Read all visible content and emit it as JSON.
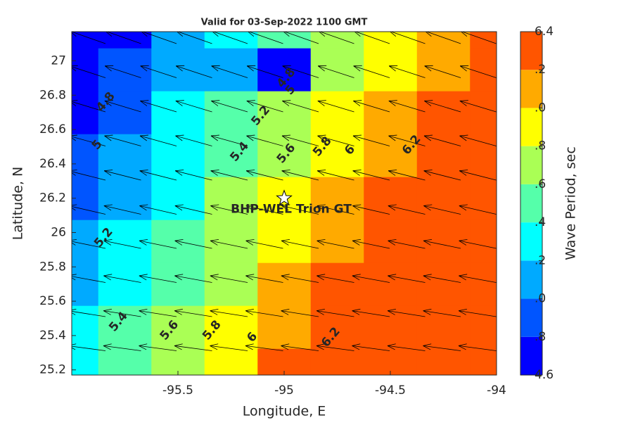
{
  "chart_data": {
    "type": "contourf",
    "title": "Valid for 03-Sep-2022 1100 GMT",
    "xlabel": "Longitude, E",
    "ylabel": "Latitude, N",
    "colorbar_label": "Wave Period, sec",
    "x": [
      -96,
      -95.75,
      -95.5,
      -95.25,
      -95,
      -94.75,
      -94.5,
      -94.25,
      -94
    ],
    "y": [
      25.2,
      25.45,
      25.7,
      25.95,
      26.2,
      26.45,
      26.7,
      26.95,
      27.2
    ],
    "z": [
      [
        5.35,
        5.56,
        5.77,
        5.98,
        6.2,
        6.35,
        6.35,
        6.35,
        6.35
      ],
      [
        5.25,
        5.46,
        5.67,
        5.89,
        6.1,
        6.31,
        6.35,
        6.35,
        6.35
      ],
      [
        5.15,
        5.37,
        5.58,
        5.79,
        6.0,
        6.22,
        6.35,
        6.35,
        6.35
      ],
      [
        5.06,
        5.27,
        5.48,
        5.7,
        5.91,
        6.12,
        6.33,
        6.35,
        6.35
      ],
      [
        4.96,
        5.18,
        5.39,
        5.6,
        5.81,
        6.03,
        6.24,
        6.35,
        6.35
      ],
      [
        4.87,
        5.08,
        5.29,
        5.5,
        5.72,
        5.93,
        6.14,
        6.35,
        6.35
      ],
      [
        4.77,
        4.98,
        5.2,
        5.41,
        5.62,
        5.83,
        6.05,
        6.26,
        6.35
      ],
      [
        4.68,
        4.89,
        5.1,
        5.05,
        4.78,
        5.74,
        5.95,
        6.17,
        6.35
      ],
      [
        4.65,
        4.79,
        5.01,
        5.22,
        5.43,
        5.64,
        5.86,
        6.07,
        6.28
      ]
    ],
    "levels": [
      4.6,
      4.8,
      5.0,
      5.2,
      5.4,
      5.6,
      5.8,
      6.0,
      6.2,
      6.4
    ],
    "colors": [
      "#0000ff",
      "#0055ff",
      "#00aaff",
      "#00ffff",
      "#55ffaa",
      "#aaff55",
      "#ffff00",
      "#ffaa00",
      "#ff5500"
    ],
    "xlim": [
      -96,
      -94
    ],
    "xticks": [
      -95.5,
      -95,
      -94.5,
      -94
    ],
    "ylim": [
      25.17,
      27.17
    ],
    "yticks": [
      25.2,
      25.4,
      25.6,
      25.8,
      26,
      26.2,
      26.4,
      26.6,
      26.8,
      27
    ],
    "clim": [
      4.6,
      6.4
    ],
    "cticks": [
      4.6,
      {
        "value": 4.8,
        "label": ".8"
      },
      {
        "value": 5.0,
        "label": ".0"
      },
      {
        "value": 5.2,
        "label": ".2"
      },
      {
        "value": 5.4,
        "label": ".4"
      },
      {
        "value": 5.6,
        "label": ".6"
      },
      {
        "value": 5.8,
        "label": ".8"
      },
      {
        "value": 6.0,
        "label": ".0"
      },
      {
        "value": 6.2,
        "label": ".2"
      },
      6.4
    ],
    "contour_labels": [
      {
        "label": "4.8",
        "lon": -95.84,
        "lat": 26.76
      },
      {
        "label": "4.8",
        "lon": -94.99,
        "lat": 26.9
      },
      {
        "label": "5",
        "lon": -94.97,
        "lat": 26.83
      },
      {
        "label": "5",
        "lon": -95.88,
        "lat": 26.51
      },
      {
        "label": "5.2",
        "lon": -95.11,
        "lat": 26.68
      },
      {
        "label": "5.4",
        "lon": -95.21,
        "lat": 26.47
      },
      {
        "label": "5.6",
        "lon": -94.99,
        "lat": 26.46
      },
      {
        "label": "5.8",
        "lon": -94.82,
        "lat": 26.5
      },
      {
        "label": "6",
        "lon": -94.69,
        "lat": 26.48
      },
      {
        "label": "6.2",
        "lon": -94.4,
        "lat": 26.51
      },
      {
        "label": "5.2",
        "lon": -95.85,
        "lat": 25.97
      },
      {
        "label": "5.4",
        "lon": -95.78,
        "lat": 25.48
      },
      {
        "label": "5.6",
        "lon": -95.54,
        "lat": 25.43
      },
      {
        "label": "5.8",
        "lon": -95.34,
        "lat": 25.43
      },
      {
        "label": "6",
        "lon": -95.15,
        "lat": 25.39
      },
      {
        "label": "6.2",
        "lon": -94.78,
        "lat": 25.39
      }
    ],
    "site": {
      "name": "BHP-WEL Trion GT",
      "lon": -95,
      "lat": 26.2
    }
  }
}
